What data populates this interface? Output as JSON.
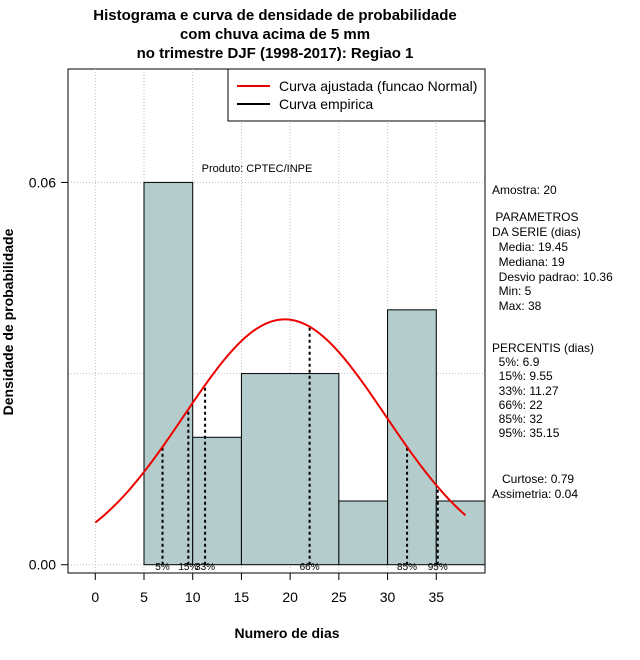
{
  "title": {
    "line1": "Histograma e curva de densidade de probabilidade",
    "line2": "com chuva acima de 5 mm",
    "line3": "no trimestre DJF (1998-2017): Regiao 1"
  },
  "legend": {
    "fitted_label": "Curva ajustada (funcao Normal)",
    "empirical_label": "Curva empirica",
    "fitted_color": "#ee0000",
    "empirical_color": "#000000"
  },
  "watermark": "Produto: CPTEC/INPE",
  "stats": {
    "amostra": "Amostra: 20",
    "params_header1": " PARAMETROS",
    "params_header2": "DA SERIE (dias)",
    "media": "  Media: 19.45",
    "mediana": "  Mediana: 19",
    "desvio": "  Desvio padrao: 10.36",
    "min": "  Min: 5",
    "max": "  Max: 38",
    "percentis_header": "PERCENTIS (dias)",
    "p5": "  5%: 6.9",
    "p15": "  15%: 9.55",
    "p33": "  33%: 11.27",
    "p66": "  66%: 22",
    "p85": "  85%: 32",
    "p95": "  95%: 35.15",
    "curtose": "   Curtose: 0.79",
    "assimetria": "Assimetria: 0.04"
  },
  "chart_data": {
    "type": "bar",
    "xlabel": "Numero de dias",
    "ylabel": "Densidade de probabilidade",
    "xlim": [
      -2.8,
      40
    ],
    "ylim": [
      -0.0013,
      0.0778
    ],
    "x_ticks": [
      0,
      5,
      10,
      15,
      20,
      25,
      30,
      35
    ],
    "y_ticks": [
      0.0,
      0.06
    ],
    "y_tick_labels": [
      "0.00",
      "0.06"
    ],
    "grid": true,
    "legend_position": "top-right",
    "bar_color": "#b4cccc",
    "bins": [
      {
        "from": 5,
        "to": 10,
        "density": 0.06
      },
      {
        "from": 10,
        "to": 15,
        "density": 0.02
      },
      {
        "from": 15,
        "to": 25,
        "density": 0.03
      },
      {
        "from": 25,
        "to": 30,
        "density": 0.01
      },
      {
        "from": 30,
        "to": 35,
        "density": 0.04
      },
      {
        "from": 35,
        "to": 40,
        "density": 0.01
      }
    ],
    "normal_fit": {
      "mean": 19.45,
      "sd": 10.36,
      "x_from": 0,
      "x_to": 38
    },
    "percentile_lines": [
      {
        "label": "5%",
        "x": 6.9
      },
      {
        "label": "15%",
        "x": 9.55
      },
      {
        "label": "33%",
        "x": 11.27
      },
      {
        "label": "66%",
        "x": 22
      },
      {
        "label": "85%",
        "x": 32
      },
      {
        "label": "95%",
        "x": 35.15
      }
    ]
  }
}
